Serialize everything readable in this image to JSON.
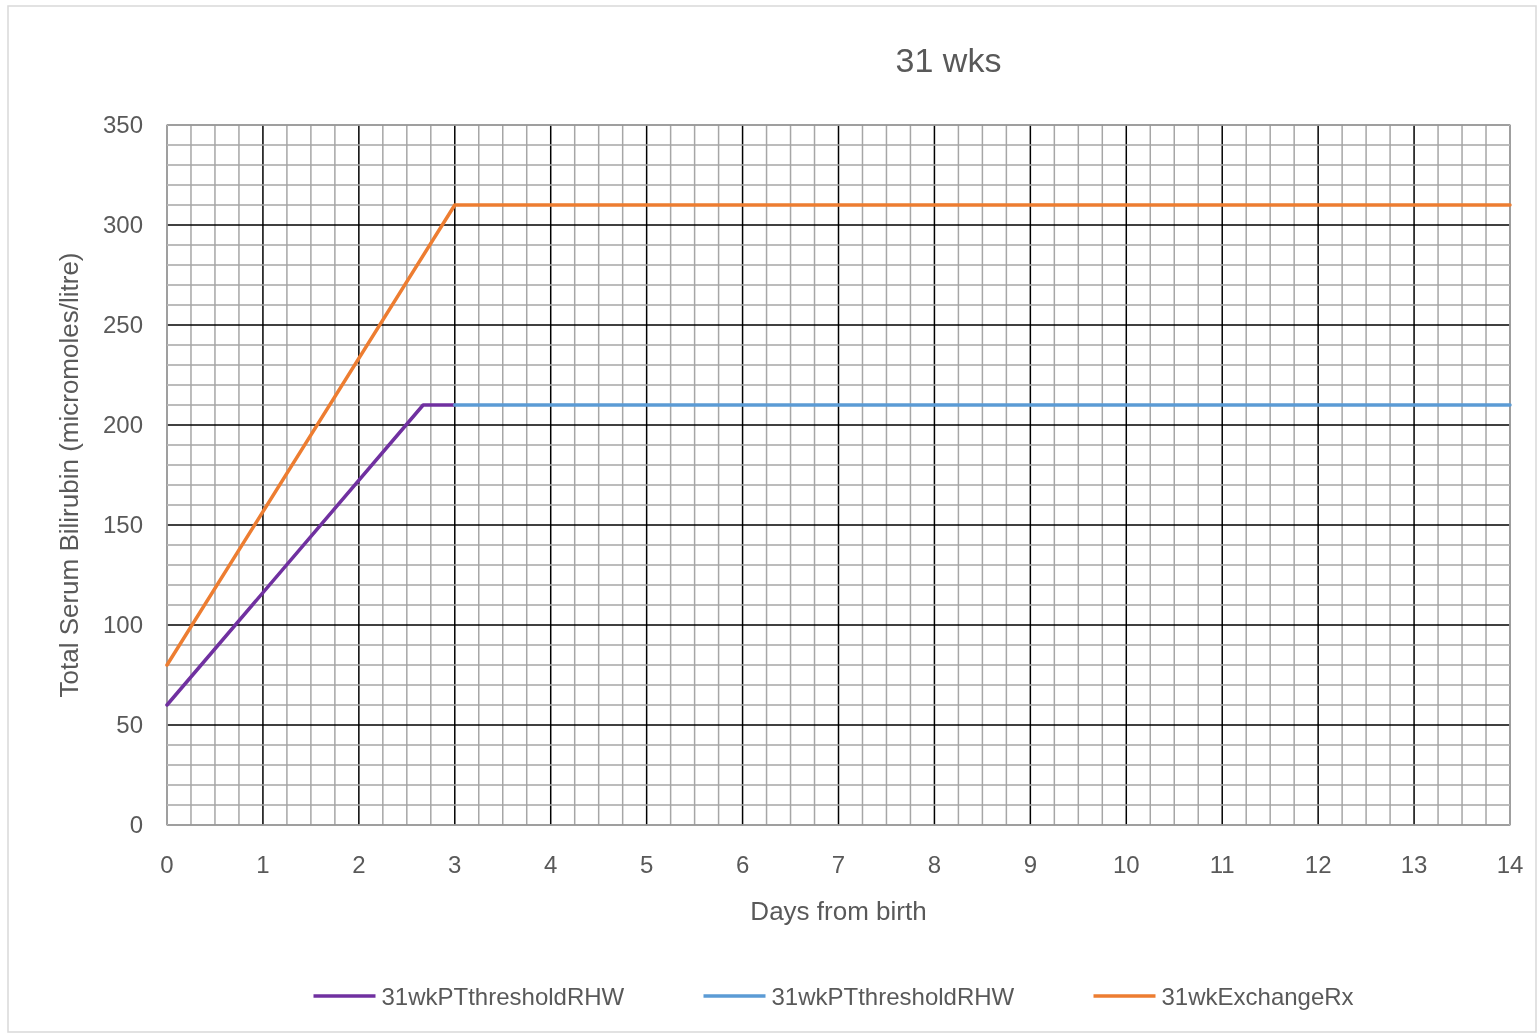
{
  "chart_data": {
    "type": "line",
    "title": "31 wks",
    "xlabel": "Days from birth",
    "ylabel": "Total Serum Bilirubin (micromoles/litre)",
    "xlim": [
      0,
      14
    ],
    "ylim": [
      0,
      350
    ],
    "xticks": [
      0,
      {
        "value": 0.25,
        "label": null
      },
      {
        "value": 0.5,
        "label": null
      },
      {
        "value": 0.75,
        "label": null
      },
      1,
      {
        "value": 1.25,
        "label": null
      },
      {
        "value": 1.5,
        "label": null
      },
      {
        "value": 1.75,
        "label": null
      },
      2,
      {
        "value": 2.25,
        "label": null
      },
      {
        "value": 2.5,
        "label": null
      },
      {
        "value": 2.75,
        "label": null
      },
      3,
      {
        "value": 3.25,
        "label": null
      },
      {
        "value": 3.5,
        "label": null
      },
      {
        "value": 3.75,
        "label": null
      },
      4,
      {
        "value": 4.25,
        "label": null
      },
      {
        "value": 4.5,
        "label": null
      },
      {
        "value": 4.75,
        "label": null
      },
      5,
      {
        "value": 5.25,
        "label": null
      },
      {
        "value": 5.5,
        "label": null
      },
      {
        "value": 5.75,
        "label": null
      },
      6,
      {
        "value": 6.25,
        "label": null
      },
      {
        "value": 6.5,
        "label": null
      },
      {
        "value": 6.75,
        "label": null
      },
      7,
      {
        "value": 7.25,
        "label": null
      },
      {
        "value": 7.5,
        "label": null
      },
      {
        "value": 7.75,
        "label": null
      },
      8,
      {
        "value": 8.25,
        "label": null
      },
      {
        "value": 8.5,
        "label": null
      },
      {
        "value": 8.75,
        "label": null
      },
      9,
      {
        "value": 9.25,
        "label": null
      },
      {
        "value": 9.5,
        "label": null
      },
      {
        "value": 9.75,
        "label": null
      },
      10,
      {
        "value": 10.25,
        "label": null
      },
      {
        "value": 10.5,
        "label": null
      },
      {
        "value": 10.75,
        "label": null
      },
      11,
      {
        "value": 11.25,
        "label": null
      },
      {
        "value": 11.5,
        "label": null
      },
      {
        "value": 11.75,
        "label": null
      },
      12,
      {
        "value": 12.25,
        "label": null
      },
      {
        "value": 12.5,
        "label": null
      },
      {
        "value": 12.75,
        "label": null
      },
      13,
      {
        "value": 13.25,
        "label": null
      },
      {
        "value": 13.5,
        "label": null
      },
      {
        "value": 13.75,
        "label": null
      },
      14
    ],
    "yticks": [
      0,
      {
        "value": 10,
        "label": null
      },
      {
        "value": 20,
        "label": null
      },
      {
        "value": 30,
        "label": null
      },
      {
        "value": 40,
        "label": null
      },
      50,
      {
        "value": 60,
        "label": null
      },
      {
        "value": 70,
        "label": null
      },
      {
        "value": 80,
        "label": null
      },
      {
        "value": 90,
        "label": null
      },
      100,
      {
        "value": 110,
        "label": null
      },
      {
        "value": 120,
        "label": null
      },
      {
        "value": 130,
        "label": null
      },
      {
        "value": 140,
        "label": null
      },
      150,
      {
        "value": 160,
        "label": null
      },
      {
        "value": 170,
        "label": null
      },
      {
        "value": 180,
        "label": null
      },
      {
        "value": 190,
        "label": null
      },
      200,
      {
        "value": 210,
        "label": null
      },
      {
        "value": 220,
        "label": null
      },
      {
        "value": 230,
        "label": null
      },
      {
        "value": 240,
        "label": null
      },
      250,
      {
        "value": 260,
        "label": null
      },
      {
        "value": 270,
        "label": null
      },
      {
        "value": 280,
        "label": null
      },
      {
        "value": 290,
        "label": null
      },
      300,
      {
        "value": 310,
        "label": null
      },
      {
        "value": 320,
        "label": null
      },
      {
        "value": 330,
        "label": null
      },
      {
        "value": 340,
        "label": null
      },
      350
    ],
    "grid": true,
    "legend": "bottom",
    "marker": "none",
    "line_style": "solid",
    "series": [
      {
        "name": "31wkPTthresholdRHW",
        "color": "#7030a0",
        "x": [
          0,
          2.67,
          3
        ],
        "values": [
          60,
          210,
          210
        ]
      },
      {
        "name": "31wkPTthresholdRHW",
        "color": "#5b9bd5",
        "x": [
          3,
          14
        ],
        "values": [
          210,
          210
        ]
      },
      {
        "name": "31wkExchangeRx",
        "color": "#ed7d31",
        "x": [
          0,
          3,
          14
        ],
        "values": [
          80,
          310,
          310
        ]
      }
    ]
  }
}
